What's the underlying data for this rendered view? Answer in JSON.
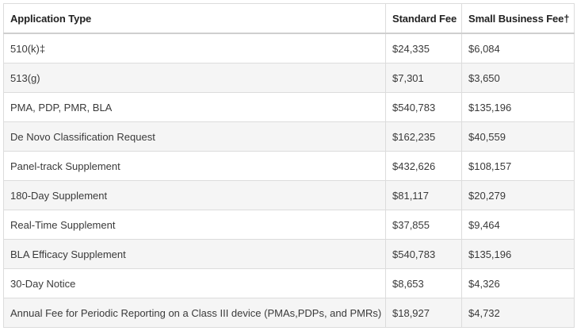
{
  "table": {
    "headers": [
      "Application Type",
      "Standard Fee",
      "Small Business Fee†"
    ],
    "rows": [
      [
        "510(k)‡",
        "$24,335",
        "$6,084"
      ],
      [
        "513(g)",
        "$7,301",
        "$3,650"
      ],
      [
        "PMA, PDP, PMR, BLA",
        "$540,783",
        "$135,196"
      ],
      [
        "De Novo Classification Request",
        "$162,235",
        "$40,559"
      ],
      [
        "Panel-track Supplement",
        "$432,626",
        "$108,157"
      ],
      [
        "180-Day Supplement",
        "$81,117",
        "$20,279"
      ],
      [
        "Real-Time Supplement",
        "$37,855",
        "$9,464"
      ],
      [
        "BLA Efficacy Supplement",
        "$540,783",
        "$135,196"
      ],
      [
        "30-Day Notice",
        "$8,653",
        "$4,326"
      ],
      [
        "Annual Fee for Periodic Reporting on a Class III device (PMAs,PDPs, and PMRs)",
        "$18,927",
        "$4,732"
      ]
    ]
  }
}
